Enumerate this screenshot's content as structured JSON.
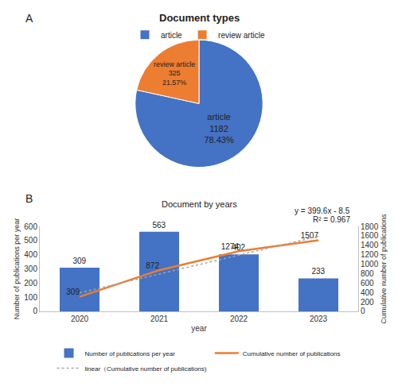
{
  "chart_data": [
    {
      "type": "pie",
      "panel": "A",
      "title": "Document types",
      "categories": [
        "article",
        "review article"
      ],
      "values": [
        1182,
        325
      ],
      "percent_labels": [
        "78.43%",
        "21.57%"
      ],
      "colors": [
        "#4472c4",
        "#ed7d31"
      ],
      "data_labels": true,
      "legend": "top"
    },
    {
      "type": "bar",
      "panel": "B",
      "title": "Document by years",
      "x_label": "year",
      "y_label": "Number of publications per year",
      "y2_label": "Cumulative number of publications",
      "categories": [
        "2020",
        "2021",
        "2022",
        "2023"
      ],
      "series": [
        {
          "name": "Number of publications per year",
          "type": "bar",
          "color": "#4472c4",
          "values": [
            309,
            563,
            402,
            233
          ],
          "data_labels": true
        },
        {
          "name": "Cumulative number of publications",
          "type": "line",
          "axis": "y2",
          "color": "#ed7d31",
          "values": [
            309,
            872,
            1274,
            1507
          ],
          "data_labels": true
        },
        {
          "name": "linear（Cumulative number of publications)",
          "type": "line",
          "axis": "y2",
          "color": "#a5a5a5",
          "line_style": "dot",
          "values": [
            391.1,
            790.7,
            1190.3,
            1589.9
          ],
          "data_labels": false
        }
      ],
      "annotations": [
        "y = 399.6x - 8.5",
        "R² = 0.967"
      ],
      "ylim": [
        0,
        600
      ],
      "yticks": [
        0,
        100,
        200,
        300,
        400,
        500,
        600
      ],
      "y2lim": [
        0,
        1800
      ],
      "y2ticks": [
        0,
        200,
        400,
        600,
        800,
        1000,
        1200,
        1400,
        1600,
        1800
      ],
      "grid": false,
      "legend": "bottom"
    }
  ]
}
